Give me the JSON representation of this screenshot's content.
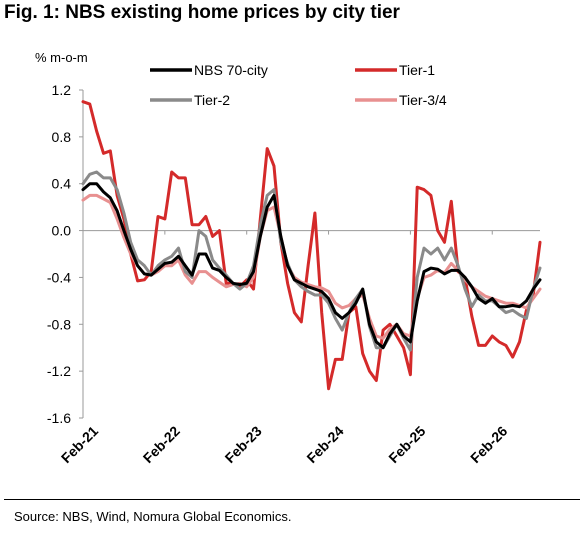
{
  "figure": {
    "title": "Fig. 1: NBS existing home prices by city tier",
    "source": "Source: NBS, Wind, Nomura Global Economics."
  },
  "chart_data": {
    "type": "line",
    "ylabel": "% m-o-m",
    "ylim": [
      -1.6,
      1.2
    ],
    "yticks": [
      1.2,
      0.8,
      0.4,
      0.0,
      -0.4,
      -0.8,
      -1.2,
      -1.6
    ],
    "ytick_labels": [
      "1.2",
      "0.8",
      "0.4",
      "0.0",
      "-0.4",
      "-0.8",
      "-1.2",
      "-1.6"
    ],
    "x_start": "Feb-21",
    "x_end": "Feb-26",
    "xtick_labels": [
      "Feb-21",
      "Feb-22",
      "Feb-23",
      "Feb-24",
      "Feb-25",
      "Feb-26"
    ],
    "grid": false,
    "legend": "top",
    "series": [
      {
        "name": "NBS 70-city",
        "color": "#000000",
        "values": [
          0.35,
          0.4,
          0.4,
          0.33,
          0.28,
          0.17,
          0.0,
          -0.16,
          -0.3,
          -0.37,
          -0.38,
          -0.33,
          -0.28,
          -0.27,
          -0.22,
          -0.3,
          -0.38,
          -0.2,
          -0.2,
          -0.32,
          -0.34,
          -0.4,
          -0.45,
          -0.46,
          -0.45,
          -0.35,
          -0.05,
          0.2,
          0.3,
          -0.05,
          -0.3,
          -0.42,
          -0.45,
          -0.48,
          -0.5,
          -0.52,
          -0.58,
          -0.7,
          -0.75,
          -0.7,
          -0.62,
          -0.5,
          -0.8,
          -0.95,
          -1.0,
          -0.88,
          -0.8,
          -0.9,
          -0.95,
          -0.6,
          -0.35,
          -0.32,
          -0.33,
          -0.37,
          -0.34,
          -0.34,
          -0.4,
          -0.48,
          -0.58,
          -0.62,
          -0.58,
          -0.65,
          -0.65,
          -0.64,
          -0.65,
          -0.6,
          -0.5,
          -0.42
        ]
      },
      {
        "name": "Tier-1",
        "color": "#d42a2a",
        "values": [
          1.1,
          1.08,
          0.85,
          0.66,
          0.68,
          0.3,
          0.1,
          -0.2,
          -0.43,
          -0.42,
          -0.35,
          0.12,
          0.1,
          0.5,
          0.45,
          0.45,
          0.05,
          0.05,
          0.12,
          -0.05,
          0.0,
          -0.45,
          -0.45,
          -0.48,
          -0.42,
          -0.5,
          0.1,
          0.7,
          0.55,
          -0.1,
          -0.45,
          -0.7,
          -0.78,
          -0.3,
          0.15,
          -0.7,
          -1.35,
          -1.1,
          -1.1,
          -0.7,
          -0.65,
          -1.05,
          -1.2,
          -1.28,
          -0.85,
          -0.8,
          -0.9,
          -1.0,
          -1.23,
          0.37,
          0.35,
          0.3,
          0.0,
          -0.1,
          0.25,
          -0.35,
          -0.4,
          -0.73,
          -0.98,
          -0.98,
          -0.9,
          -0.95,
          -0.98,
          -1.08,
          -0.95,
          -0.68,
          -0.55,
          -0.1
        ]
      },
      {
        "name": "Tier-2",
        "color": "#8a8a8a",
        "values": [
          0.4,
          0.48,
          0.5,
          0.45,
          0.45,
          0.35,
          0.15,
          -0.1,
          -0.25,
          -0.3,
          -0.38,
          -0.3,
          -0.25,
          -0.22,
          -0.15,
          -0.35,
          -0.4,
          0.0,
          -0.05,
          -0.25,
          -0.32,
          -0.38,
          -0.45,
          -0.5,
          -0.45,
          -0.3,
          0.05,
          0.3,
          0.35,
          -0.1,
          -0.28,
          -0.42,
          -0.48,
          -0.52,
          -0.55,
          -0.55,
          -0.62,
          -0.75,
          -0.85,
          -0.7,
          -0.58,
          -0.5,
          -0.82,
          -1.0,
          -1.0,
          -0.9,
          -0.8,
          -0.92,
          -1.02,
          -0.4,
          -0.15,
          -0.2,
          -0.15,
          -0.25,
          -0.15,
          -0.3,
          -0.5,
          -0.65,
          -0.55,
          -0.6,
          -0.6,
          -0.65,
          -0.7,
          -0.68,
          -0.72,
          -0.75,
          -0.5,
          -0.32
        ]
      },
      {
        "name": "Tier-3/4",
        "color": "#e89090",
        "values": [
          0.26,
          0.3,
          0.3,
          0.27,
          0.24,
          0.1,
          -0.06,
          -0.2,
          -0.3,
          -0.37,
          -0.38,
          -0.35,
          -0.3,
          -0.3,
          -0.25,
          -0.38,
          -0.45,
          -0.35,
          -0.35,
          -0.4,
          -0.44,
          -0.48,
          -0.46,
          -0.45,
          -0.48,
          -0.4,
          -0.05,
          0.17,
          0.2,
          -0.05,
          -0.3,
          -0.4,
          -0.44,
          -0.46,
          -0.48,
          -0.49,
          -0.52,
          -0.62,
          -0.66,
          -0.64,
          -0.58,
          -0.55,
          -0.75,
          -0.9,
          -0.92,
          -0.84,
          -0.8,
          -0.88,
          -0.9,
          -0.58,
          -0.4,
          -0.38,
          -0.34,
          -0.36,
          -0.28,
          -0.34,
          -0.42,
          -0.48,
          -0.52,
          -0.56,
          -0.58,
          -0.6,
          -0.62,
          -0.62,
          -0.64,
          -0.66,
          -0.58,
          -0.5
        ]
      }
    ]
  }
}
